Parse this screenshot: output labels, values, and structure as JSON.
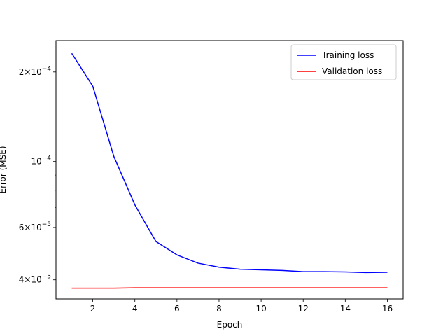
{
  "chart_data": {
    "type": "line",
    "title": "",
    "xlabel": "Epoch",
    "ylabel": "Error (MSE)",
    "yscale": "log",
    "xlim": [
      0.25,
      16.75
    ],
    "ylim": [
      3.45e-05,
      0.000255
    ],
    "x": [
      1,
      2,
      3,
      4,
      5,
      6,
      7,
      8,
      9,
      10,
      11,
      12,
      13,
      14,
      15,
      16
    ],
    "x_ticks": [
      2,
      4,
      6,
      8,
      10,
      12,
      14,
      16
    ],
    "x_tick_labels": [
      "2",
      "4",
      "6",
      "8",
      "10",
      "12",
      "14",
      "16"
    ],
    "y_major_ticks": [
      {
        "value": 0.0002,
        "mantissa": "2",
        "exponent": "−4"
      },
      {
        "value": 0.0001,
        "mantissa": "",
        "exponent": "−4"
      },
      {
        "value": 6e-05,
        "mantissa": "6",
        "exponent": "−5"
      },
      {
        "value": 4e-05,
        "mantissa": "4",
        "exponent": "−5"
      }
    ],
    "y_minor_ticks": [
      3e-05,
      5e-05,
      7e-05,
      8e-05,
      9e-05
    ],
    "grid": false,
    "legend_position": "top-right",
    "series": [
      {
        "name": "Training loss",
        "color": "#0000ff",
        "values": [
          0.000231,
          0.000179,
          0.000104,
          7.15e-05,
          5.38e-05,
          4.85e-05,
          4.55e-05,
          4.41e-05,
          4.34e-05,
          4.32e-05,
          4.3e-05,
          4.26e-05,
          4.26e-05,
          4.25e-05,
          4.23e-05,
          4.24e-05
        ]
      },
      {
        "name": "Validation loss",
        "color": "#ff0000",
        "values": [
          3.75e-05,
          3.75e-05,
          3.75e-05,
          3.76e-05,
          3.76e-05,
          3.76e-05,
          3.76e-05,
          3.76e-05,
          3.76e-05,
          3.76e-05,
          3.76e-05,
          3.76e-05,
          3.76e-05,
          3.76e-05,
          3.76e-05,
          3.76e-05
        ]
      }
    ]
  }
}
